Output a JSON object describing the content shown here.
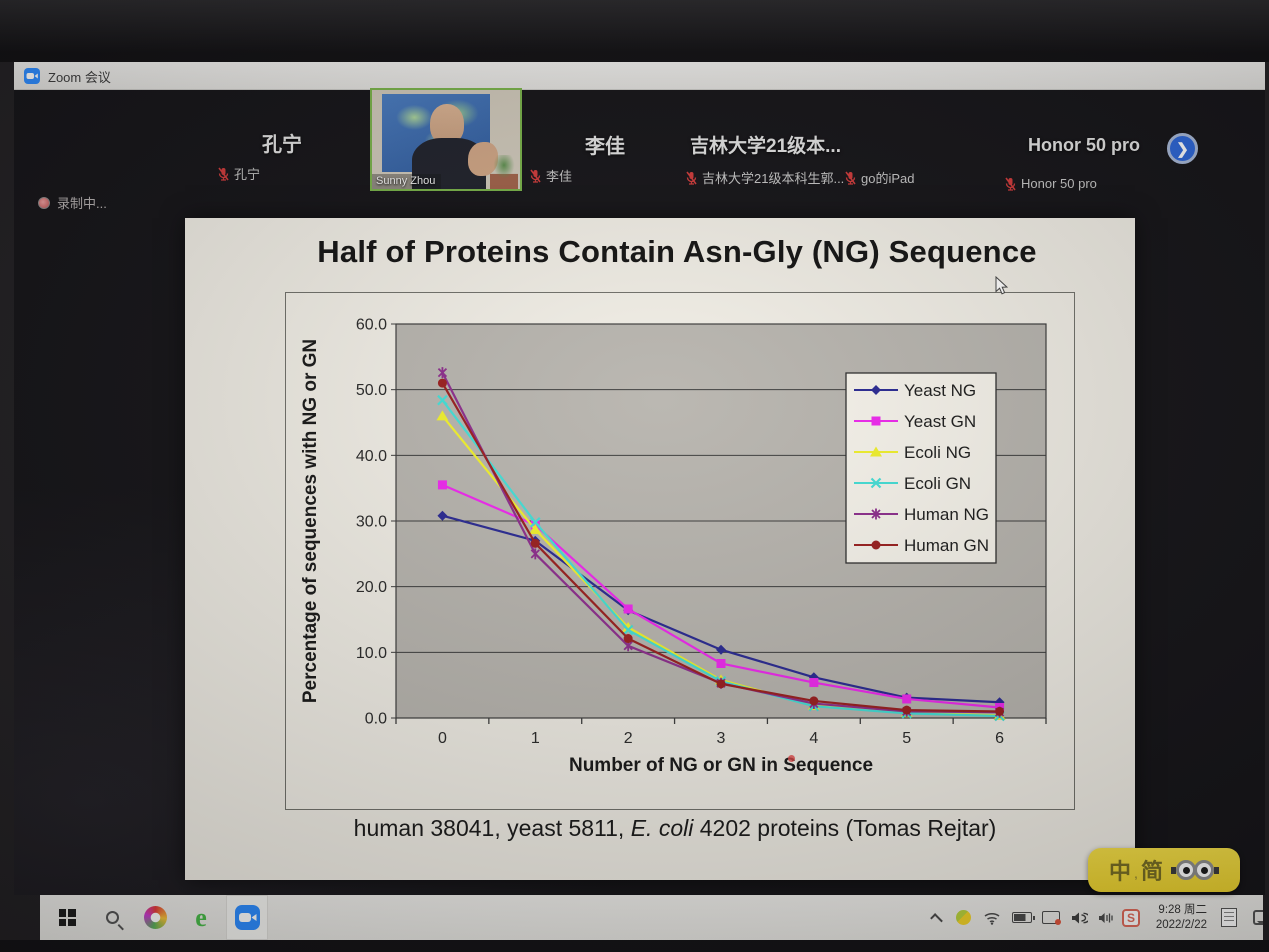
{
  "titlebar": {
    "app_title": "Zoom 会议"
  },
  "meeting": {
    "recording_label": "录制中...",
    "video_tile_name": "Sunny Zhou",
    "display_names": [
      "孔宁",
      "李佳",
      "吉林大学21级本...",
      "Honor 50 pro"
    ],
    "muted_participants": [
      "孔宁",
      "李佳",
      "吉林大学21级本科生郭...",
      "go的iPad",
      "Honor 50 pro"
    ],
    "next_page_icon": "chevron-right-icon"
  },
  "slide": {
    "title": "Half of Proteins Contain Asn-Gly (NG) Sequence",
    "caption_pre": "human 38041, yeast 5811, ",
    "caption_italic": "E. coli",
    "caption_post": " 4202 proteins (Tomas Rejtar)"
  },
  "chart_data": {
    "type": "line",
    "title": "",
    "xlabel": "Number of NG or GN in Sequence",
    "ylabel": "Percentage of sequences with NG or GN",
    "x": [
      0,
      1,
      2,
      3,
      4,
      5,
      6
    ],
    "xlim": [
      0,
      6
    ],
    "ylim": [
      0,
      60
    ],
    "yticks": [
      0,
      10,
      20,
      30,
      40,
      50,
      60
    ],
    "ytick_format": "one_decimal",
    "grid": "horizontal",
    "legend_position": "upper right",
    "plot_bg": "#b9b6b0",
    "series": [
      {
        "name": "Yeast NG",
        "color": "#2b2b94",
        "marker": "diamond",
        "values": [
          30.8,
          27.0,
          16.4,
          10.4,
          6.2,
          3.1,
          2.4
        ]
      },
      {
        "name": "Yeast GN",
        "color": "#f02af0",
        "marker": "square",
        "values": [
          35.5,
          29.4,
          16.6,
          8.3,
          5.4,
          2.9,
          1.6
        ]
      },
      {
        "name": "Ecoli NG",
        "color": "#f2f22e",
        "marker": "triangle",
        "values": [
          46.0,
          28.7,
          13.8,
          5.8,
          1.9,
          0.8,
          0.4
        ]
      },
      {
        "name": "Ecoli GN",
        "color": "#45e0d8",
        "marker": "x",
        "values": [
          48.4,
          29.8,
          13.4,
          5.6,
          1.8,
          0.7,
          0.3
        ]
      },
      {
        "name": "Human NG",
        "color": "#8e2f8e",
        "marker": "star",
        "values": [
          52.6,
          25.0,
          11.0,
          5.3,
          2.2,
          1.0,
          0.9
        ]
      },
      {
        "name": "Human GN",
        "color": "#9b2020",
        "marker": "circle",
        "values": [
          51.0,
          26.6,
          12.1,
          5.2,
          2.6,
          1.2,
          1.0
        ]
      }
    ]
  },
  "ime": {
    "zh": "中",
    "comma": ",",
    "jian": "简",
    "theme_icon": "minion-goggles-icon"
  },
  "taskbar": {
    "clock_time": "9:28 周二",
    "clock_date": "2022/2/22",
    "app_icons": [
      "start",
      "search",
      "browser",
      "ie",
      "zoom"
    ],
    "tray_icons": [
      "tray-expand",
      "antivirus",
      "wifi",
      "battery",
      "projector",
      "speaker",
      "volume-mixer",
      "sogou-s",
      "clock",
      "notes",
      "chat"
    ]
  },
  "colors": {
    "zoom_blue": "#2d8cff",
    "active_speaker_green": "#79b24a",
    "next_button_blue": "#2e67d8",
    "record_red": "#c25555",
    "ime_yellow": "#ecd22f",
    "laser_dot_red": "#e24848"
  }
}
